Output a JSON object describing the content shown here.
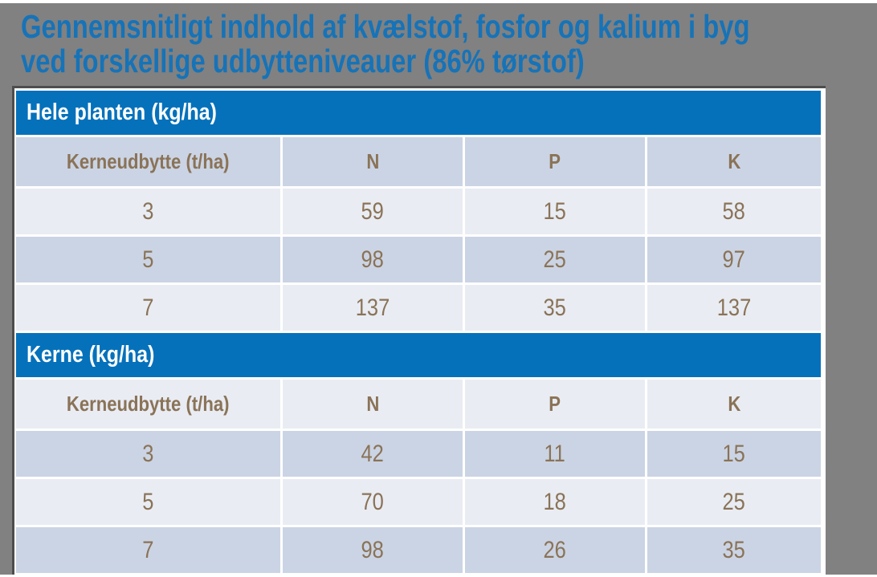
{
  "title": {
    "line1": "Gennemsnitligt indhold af kvælstof, fosfor og kalium i byg",
    "line2": "ved forskellige udbytteniveauer (86% tørstof)"
  },
  "table": {
    "sections": [
      {
        "header": "Hele planten (kg/ha)",
        "columns": [
          "Kerneudbytte (t/ha)",
          "N",
          "P",
          "K"
        ],
        "rows": [
          [
            "3",
            "59",
            "15",
            "58"
          ],
          [
            "5",
            "98",
            "25",
            "97"
          ],
          [
            "7",
            "137",
            "35",
            "137"
          ]
        ]
      },
      {
        "header": "Kerne (kg/ha)",
        "columns": [
          "Kerneudbytte (t/ha)",
          "N",
          "P",
          "K"
        ],
        "rows": [
          [
            "3",
            "42",
            "11",
            "15"
          ],
          [
            "5",
            "70",
            "18",
            "25"
          ],
          [
            "7",
            "98",
            "26",
            "35"
          ]
        ]
      }
    ]
  },
  "colors": {
    "accent_blue": "#0571bb",
    "title_blue": "#1673b8",
    "row_light": "#e9ecf3",
    "row_dark": "#cbd4e4",
    "cell_text_brown": "#8a7357",
    "background_gray": "#818181",
    "table_border_dark": "#4d4d4d"
  }
}
